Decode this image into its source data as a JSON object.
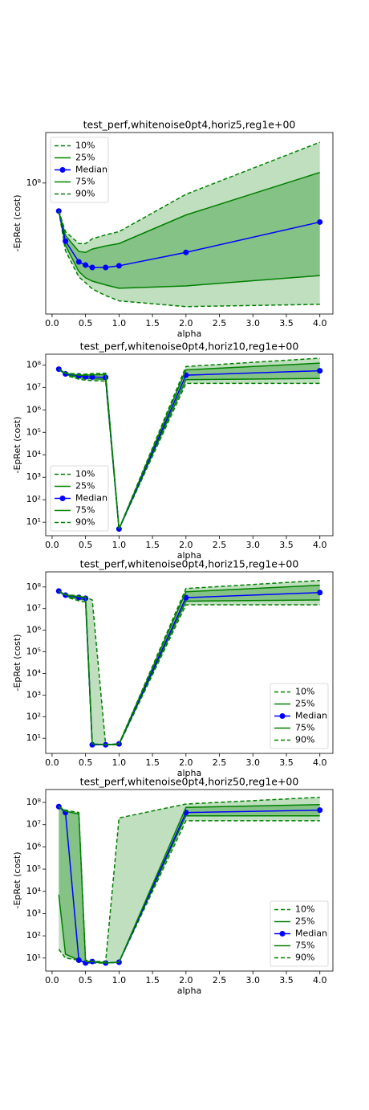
{
  "chart_data": [
    {
      "type": "line",
      "title": "test_perf,whitenoise0pt4,horiz5,reg1e+00",
      "xlabel": "alpha",
      "ylabel": "-EpRet (cost)",
      "ylog": true,
      "legend": "upper left",
      "x": [
        0.1,
        0.2,
        0.4,
        0.5,
        0.6,
        0.8,
        1.0,
        2.0,
        4.0
      ],
      "xlim": [
        -0.095,
        4.195
      ],
      "ylim": [
        11500000,
        230000000
      ],
      "xticks": [
        {
          "value": 0,
          "label": "0.0"
        },
        0.5,
        {
          "value": 1,
          "label": "1.0"
        },
        1.5,
        {
          "value": 2,
          "label": "2.0"
        },
        2.5,
        {
          "value": 3,
          "label": "3.0"
        },
        3.5,
        {
          "value": 4,
          "label": "4.0"
        }
      ],
      "yticks": [
        {
          "value": 100000000,
          "label": "10⁸"
        }
      ],
      "series": [
        {
          "name": "10%",
          "color": "#008000",
          "linestyle": "dashed",
          "values": [
            63000000,
            32700000,
            21200000,
            19300000,
            17400000,
            15600000,
            14300000,
            13000000,
            13500000
          ]
        },
        {
          "name": "25%",
          "color": "#008000",
          "linestyle": "solid",
          "values": [
            63000000,
            35800000,
            23200000,
            20900000,
            19800000,
            18600000,
            17600000,
            18300000,
            21700000
          ]
        },
        {
          "name": "Median",
          "color": "#0000ff",
          "linestyle": "solid",
          "marker": "o",
          "values": [
            63000000,
            38300000,
            27200000,
            25800000,
            24800000,
            24800000,
            25500000,
            31800000,
            52500000
          ]
        },
        {
          "name": "75%",
          "color": "#008000",
          "linestyle": "solid",
          "values": [
            63000000,
            42000000,
            32300000,
            31800000,
            33600000,
            35400000,
            36800000,
            59000000,
            119000000
          ]
        },
        {
          "name": "90%",
          "color": "#008000",
          "linestyle": "dashed",
          "values": [
            63000000,
            44800000,
            36800000,
            36800000,
            39800000,
            42500000,
            44800000,
            83000000,
            196000000
          ]
        }
      ]
    },
    {
      "type": "line",
      "title": "test_perf,whitenoise0pt4,horiz10,reg1e+00",
      "xlabel": "alpha",
      "ylabel": "-EpRet (cost)",
      "ylog": true,
      "legend": "lower left",
      "x": [
        0.1,
        0.2,
        0.4,
        0.5,
        0.6,
        0.8,
        1.0,
        2.0,
        4.0
      ],
      "xlim": [
        -0.095,
        4.195
      ],
      "ylim": [
        2.5,
        300000000
      ],
      "xticks": [
        {
          "value": 0,
          "label": "0.0"
        },
        0.5,
        {
          "value": 1,
          "label": "1.0"
        },
        1.5,
        {
          "value": 2,
          "label": "2.0"
        },
        2.5,
        {
          "value": 3,
          "label": "3.0"
        },
        3.5,
        {
          "value": 4,
          "label": "4.0"
        }
      ],
      "yticks": [
        {
          "value": 10,
          "label": "10¹"
        },
        {
          "value": 100,
          "label": "10²"
        },
        {
          "value": 1000,
          "label": "10³"
        },
        {
          "value": 10000,
          "label": "10⁴"
        },
        {
          "value": 100000,
          "label": "10⁵"
        },
        {
          "value": 1000000,
          "label": "10⁶"
        },
        {
          "value": 10000000,
          "label": "10⁷"
        },
        {
          "value": 100000000,
          "label": "10⁸"
        }
      ],
      "series": [
        {
          "name": "10%",
          "color": "#008000",
          "linestyle": "dashed",
          "values": [
            65000000,
            35000000,
            23000000,
            21000000,
            20000000,
            19000000,
            5,
            15000000,
            15000000
          ]
        },
        {
          "name": "25%",
          "color": "#008000",
          "linestyle": "solid",
          "values": [
            65000000,
            38000000,
            27000000,
            25000000,
            24000000,
            23000000,
            5,
            22000000,
            25000000
          ]
        },
        {
          "name": "Median",
          "color": "#0000ff",
          "linestyle": "solid",
          "marker": "o",
          "values": [
            65000000,
            40000000,
            33000000,
            30000000,
            29000000,
            28000000,
            5,
            35000000,
            55000000
          ]
        },
        {
          "name": "75%",
          "color": "#008000",
          "linestyle": "solid",
          "values": [
            65000000,
            42000000,
            35000000,
            35000000,
            36000000,
            37000000,
            5,
            60000000,
            120000000
          ]
        },
        {
          "name": "90%",
          "color": "#008000",
          "linestyle": "dashed",
          "values": [
            65000000,
            45000000,
            38000000,
            39000000,
            41000000,
            43000000,
            5,
            85000000,
            200000000
          ]
        }
      ]
    },
    {
      "type": "line",
      "title": "test_perf,whitenoise0pt4,horiz15,reg1e+00",
      "xlabel": "alpha",
      "ylabel": "-EpRet (cost)",
      "ylog": true,
      "legend": "lower right",
      "x": [
        0.1,
        0.2,
        0.4,
        0.5,
        0.6,
        0.8,
        1.0,
        2.0,
        4.0
      ],
      "xlim": [
        -0.095,
        4.195
      ],
      "ylim": [
        2,
        500000000
      ],
      "xticks": [
        {
          "value": 0,
          "label": "0.0"
        },
        0.5,
        {
          "value": 1,
          "label": "1.0"
        },
        1.5,
        {
          "value": 2,
          "label": "2.0"
        },
        2.5,
        {
          "value": 3,
          "label": "3.0"
        },
        3.5,
        {
          "value": 4,
          "label": "4.0"
        }
      ],
      "yticks": [
        {
          "value": 10,
          "label": "10¹"
        },
        {
          "value": 100,
          "label": "10²"
        },
        {
          "value": 1000,
          "label": "10³"
        },
        {
          "value": 10000,
          "label": "10⁴"
        },
        {
          "value": 100000,
          "label": "10⁵"
        },
        {
          "value": 1000000,
          "label": "10⁶"
        },
        {
          "value": 10000000,
          "label": "10⁷"
        },
        {
          "value": 100000000,
          "label": "10⁸"
        }
      ],
      "series": [
        {
          "name": "10%",
          "color": "#008000",
          "linestyle": "dashed",
          "values": [
            65000000,
            35000000,
            23000000,
            20000000,
            5,
            5,
            5,
            15000000,
            15000000
          ]
        },
        {
          "name": "25%",
          "color": "#008000",
          "linestyle": "solid",
          "values": [
            65000000,
            38000000,
            28000000,
            25000000,
            5,
            5,
            5.2,
            22000000,
            25000000
          ]
        },
        {
          "name": "Median",
          "color": "#0000ff",
          "linestyle": "solid",
          "marker": "o",
          "values": [
            65000000,
            42000000,
            33000000,
            30000000,
            5,
            5,
            5.5,
            32000000,
            55000000
          ]
        },
        {
          "name": "75%",
          "color": "#008000",
          "linestyle": "solid",
          "values": [
            65000000,
            43000000,
            36000000,
            33000000,
            5.5,
            5,
            5.5,
            60000000,
            120000000
          ]
        },
        {
          "name": "90%",
          "color": "#008000",
          "linestyle": "dashed",
          "values": [
            65000000,
            45000000,
            38000000,
            35000000,
            25000000,
            5,
            5.5,
            85000000,
            200000000
          ]
        }
      ]
    },
    {
      "type": "line",
      "title": "test_perf,whitenoise0pt4,horiz50,reg1e+00",
      "xlabel": "alpha",
      "ylabel": "-EpRet (cost)",
      "ylog": true,
      "legend": "lower right",
      "x": [
        0.1,
        0.2,
        0.4,
        0.5,
        0.6,
        0.8,
        1.0,
        2.0,
        4.0
      ],
      "xlim": [
        -0.095,
        4.195
      ],
      "ylim": [
        2.6,
        380000000
      ],
      "xticks": [
        {
          "value": 0,
          "label": "0.0"
        },
        0.5,
        {
          "value": 1,
          "label": "1.0"
        },
        1.5,
        {
          "value": 2,
          "label": "2.0"
        },
        2.5,
        {
          "value": 3,
          "label": "3.0"
        },
        3.5,
        {
          "value": 4,
          "label": "4.0"
        }
      ],
      "yticks": [
        {
          "value": 10,
          "label": "10¹"
        },
        {
          "value": 100,
          "label": "10²"
        },
        {
          "value": 1000,
          "label": "10³"
        },
        {
          "value": 10000,
          "label": "10⁴"
        },
        {
          "value": 100000,
          "label": "10⁵"
        },
        {
          "value": 1000000,
          "label": "10⁶"
        },
        {
          "value": 10000000,
          "label": "10⁷"
        },
        {
          "value": 100000000,
          "label": "10⁸"
        }
      ],
      "series": [
        {
          "name": "10%",
          "color": "#008000",
          "linestyle": "dashed",
          "values": [
            25,
            10,
            8,
            6,
            6,
            6,
            6.5,
            15000000,
            15000000
          ]
        },
        {
          "name": "25%",
          "color": "#008000",
          "linestyle": "solid",
          "values": [
            7000,
            15,
            8,
            6,
            6.5,
            6,
            6.5,
            25000000,
            25000000
          ]
        },
        {
          "name": "Median",
          "color": "#0000ff",
          "linestyle": "solid",
          "marker": "o",
          "values": [
            65000000,
            35000000,
            8,
            6,
            7,
            6,
            6.5,
            35000000,
            45000000
          ]
        },
        {
          "name": "75%",
          "color": "#008000",
          "linestyle": "solid",
          "values": [
            65000000,
            40000000,
            30000000,
            7,
            7,
            6,
            6.5,
            60000000,
            80000000
          ]
        },
        {
          "name": "90%",
          "color": "#008000",
          "linestyle": "dashed",
          "values": [
            65000000,
            45000000,
            35000000,
            8,
            7,
            7,
            20000000,
            85000000,
            170000000
          ]
        }
      ]
    }
  ]
}
